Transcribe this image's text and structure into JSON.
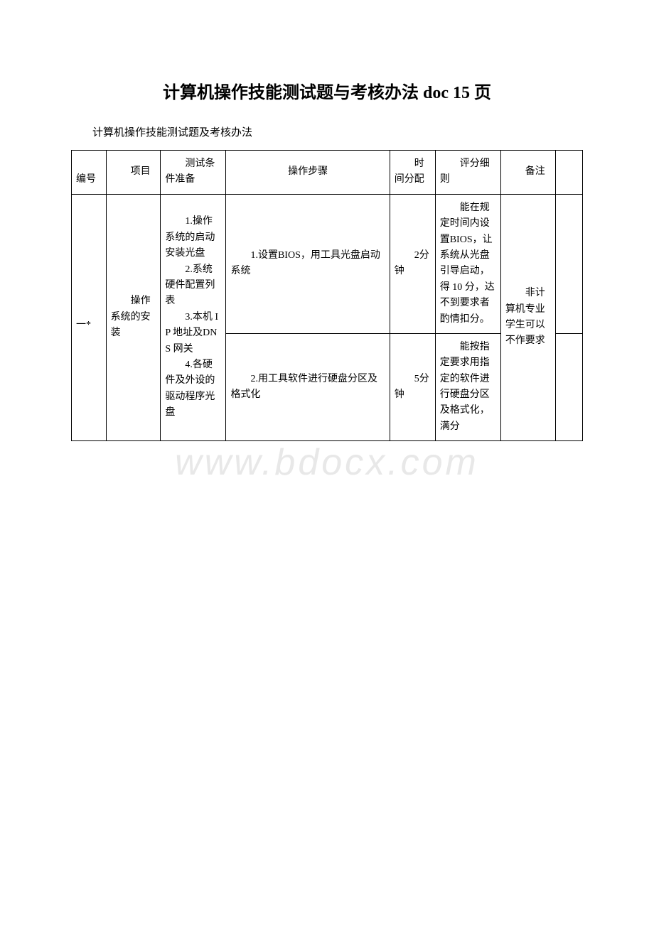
{
  "page": {
    "title": "计算机操作技能测试题与考核办法 doc 15 页",
    "subtitle": "计算机操作技能测试题及考核办法"
  },
  "watermark": "www.bdocx.com",
  "table": {
    "headers": {
      "num": "　　编号",
      "proj": "　　项目",
      "prep": "　　测试条件准备",
      "step": "操作步骤",
      "time": "　　时间分配",
      "score": "　　评分细则",
      "note": "　　备注"
    },
    "row1": {
      "num": "　　一*",
      "proj": "　　操作系统的安装",
      "prep": "　　1.操作系统的启动安装光盘\n　　2.系统硬件配置列表\n　　3.本机 IP 地址及DNS 网关\n　　4.各硬件及外设的驱动程序光盘",
      "note": "　　非计算机专业学生可以不作要求"
    },
    "subrow1": {
      "step": "　　1.设置BIOS，用工具光盘启动系统",
      "time": "　　2分钟",
      "score": "　　能在规定时间内设置BIOS，让系统从光盘引导启动，得 10 分，达不到要求者酌情扣分。"
    },
    "subrow2": {
      "step": "　　2.用工具软件进行硬盘分区及格式化",
      "time": "　　5分钟",
      "score": "　　能按指定要求用指定的软件进行硬盘分区及格式化，满分"
    }
  }
}
